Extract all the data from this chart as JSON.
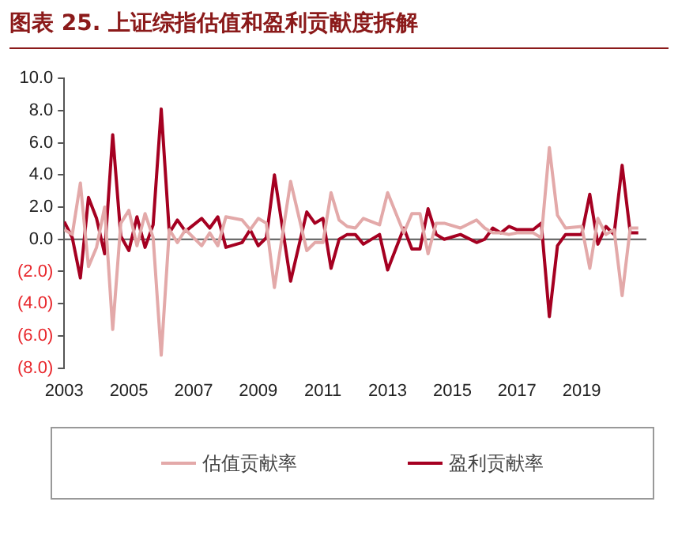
{
  "chart_data": {
    "type": "line",
    "title": "图表 25. 上证综指估值和盈利贡献度拆解",
    "x": [
      2003,
      2003.25,
      2003.5,
      2003.75,
      2004,
      2004.25,
      2004.5,
      2004.75,
      2005,
      2005.25,
      2005.5,
      2005.75,
      2006,
      2006.25,
      2006.5,
      2006.75,
      2007.25,
      2007.5,
      2007.75,
      2008,
      2008.5,
      2008.75,
      2009,
      2009.25,
      2009.5,
      2010,
      2010.5,
      2010.75,
      2011,
      2011.25,
      2011.5,
      2011.75,
      2012,
      2012.25,
      2012.75,
      2013,
      2013.5,
      2013.75,
      2014,
      2014.25,
      2014.5,
      2014.75,
      2015.25,
      2015.75,
      2016,
      2016.25,
      2016.5,
      2016.75,
      2017,
      2017.5,
      2017.75,
      2018,
      2018.25,
      2018.5,
      2019,
      2019.25,
      2019.5,
      2019.75,
      2020,
      2020.25,
      2020.5,
      2020.75
    ],
    "series": [
      {
        "name": "估值贡献率",
        "color": "#e3a9a9",
        "values": [
          0.6,
          0.3,
          3.5,
          -1.7,
          -0.5,
          2.0,
          -5.6,
          1.0,
          1.8,
          -0.4,
          1.6,
          0.1,
          -7.2,
          0.6,
          -0.2,
          0.6,
          -0.4,
          0.4,
          -0.4,
          1.4,
          1.2,
          0.6,
          1.3,
          1.0,
          -3.0,
          3.6,
          -0.7,
          -0.2,
          -0.2,
          2.9,
          1.2,
          0.8,
          0.7,
          1.3,
          0.9,
          2.9,
          0.4,
          1.6,
          1.6,
          -0.9,
          1.0,
          1.0,
          0.7,
          1.2,
          0.7,
          0.4,
          0.4,
          0.3,
          0.4,
          0.4,
          0.1,
          5.7,
          1.5,
          0.7,
          0.8,
          -1.8,
          1.3,
          0.3,
          0.6,
          -3.5,
          0.7,
          0.7
        ]
      },
      {
        "name": "盈利贡献率",
        "color": "#a50021",
        "values": [
          1.1,
          0.1,
          -2.4,
          2.6,
          1.3,
          -0.9,
          6.5,
          0.2,
          -0.7,
          1.4,
          -0.5,
          0.9,
          8.1,
          0.4,
          1.2,
          0.5,
          1.3,
          0.7,
          1.4,
          -0.5,
          -0.2,
          0.6,
          -0.4,
          0.1,
          4.0,
          -2.6,
          1.7,
          1.0,
          1.3,
          -1.8,
          0.0,
          0.3,
          0.3,
          -0.3,
          0.3,
          -1.9,
          0.7,
          -0.6,
          -0.6,
          1.9,
          0.3,
          0.0,
          0.3,
          -0.2,
          0.0,
          0.7,
          0.4,
          0.8,
          0.6,
          0.6,
          1.0,
          -4.8,
          -0.4,
          0.3,
          0.3,
          2.8,
          -0.3,
          0.8,
          0.3,
          4.6,
          0.4,
          0.4
        ]
      }
    ],
    "xlim": [
      2003,
      2021
    ],
    "xticks": [
      2003,
      2005,
      2007,
      2009,
      2011,
      2013,
      2015,
      2017,
      2019
    ],
    "ylim": [
      -8,
      10
    ],
    "yticks": [
      {
        "value": -8,
        "label": "(8.0)"
      },
      {
        "value": -6,
        "label": "(6.0)"
      },
      {
        "value": -4,
        "label": "(4.0)"
      },
      {
        "value": -2,
        "label": "(2.0)"
      },
      {
        "value": 0,
        "label": "0.0"
      },
      {
        "value": 2,
        "label": "2.0"
      },
      {
        "value": 4,
        "label": "4.0"
      },
      {
        "value": 6,
        "label": "6.0"
      },
      {
        "value": 8,
        "label": "8.0"
      },
      {
        "value": 10,
        "label": "10.0"
      }
    ],
    "ref_lines": [
      {
        "axis": "y",
        "value": 0,
        "color": "#595959"
      }
    ],
    "legend": "bottom",
    "marker": "none",
    "line_style": "solid",
    "grid": false
  }
}
